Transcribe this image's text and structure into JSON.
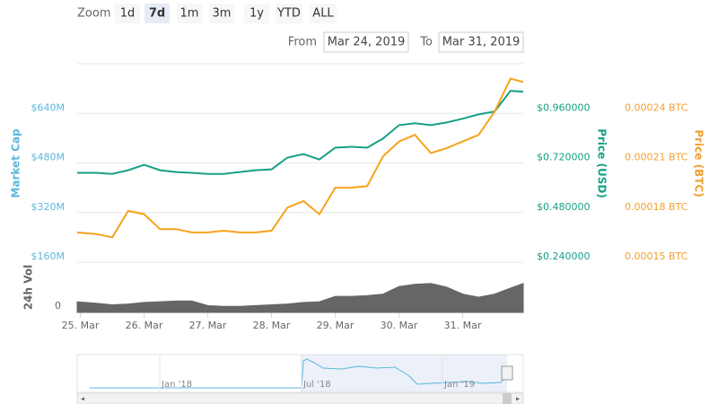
{
  "toolbar": {
    "zoom_label": "Zoom",
    "buttons": [
      "1d",
      "7d",
      "1m",
      "3m",
      "1y",
      "YTD",
      "ALL"
    ],
    "selected_index": 1,
    "from_label": "From",
    "from": "Mar 24, 2019",
    "to_label": "To",
    "to": "Mar 31, 2019"
  },
  "chart_data": {
    "type": "line",
    "x": [
      24.95,
      25.25,
      25.5,
      25.75,
      26,
      26.25,
      26.5,
      26.75,
      27,
      27.25,
      27.5,
      27.75,
      28,
      28.25,
      28.5,
      28.75,
      29,
      29.25,
      29.5,
      29.75,
      30,
      30.25,
      30.5,
      30.75,
      31,
      31.25,
      31.5,
      31.75,
      31.95
    ],
    "xlim": [
      24.95,
      31.95
    ],
    "xticks": [
      {
        "value": 25,
        "label": "25. Mar"
      },
      {
        "value": 26,
        "label": "26. Mar"
      },
      {
        "value": 27,
        "label": "27. Mar"
      },
      {
        "value": 28,
        "label": "28. Mar"
      },
      {
        "value": 29,
        "label": "29. Mar"
      },
      {
        "value": 30,
        "label": "30. Mar"
      },
      {
        "value": 31,
        "label": "31. Mar"
      }
    ],
    "ylabel": "Market Cap",
    "ycolor": "#5bb7e0",
    "ylim": [
      160000000,
      800000000
    ],
    "yticks": [
      {
        "value": 160000000,
        "label": "$160M"
      },
      {
        "value": 320000000,
        "label": "$320M"
      },
      {
        "value": 480000000,
        "label": "$480M"
      },
      {
        "value": 640000000,
        "label": "$640M"
      }
    ],
    "y2label": "Price (USD)",
    "y2color": "#16a085",
    "y2lim": [
      0.24,
      1.2
    ],
    "y2ticks": [
      {
        "value": 0.24,
        "label": "$0.240000"
      },
      {
        "value": 0.48,
        "label": "$0.480000"
      },
      {
        "value": 0.72,
        "label": "$0.720000"
      },
      {
        "value": 0.96,
        "label": "$0.960000"
      }
    ],
    "y3label": "Price (BTC)",
    "y3color": "#f0a030",
    "y3lim": [
      0.00015,
      0.00027
    ],
    "y3ticks": [
      {
        "value": 0.00015,
        "label": "0.00015 BTC"
      },
      {
        "value": 0.00018,
        "label": "0.00018 BTC"
      },
      {
        "value": 0.00021,
        "label": "0.00021 BTC"
      },
      {
        "value": 0.00024,
        "label": "0.00024 BTC"
      }
    ],
    "grid": true,
    "series": [
      {
        "axis": "y2",
        "color": "#16a085",
        "values": [
          0.672,
          0.672,
          0.667,
          0.685,
          0.711,
          0.685,
          0.676,
          0.672,
          0.667,
          0.667,
          0.676,
          0.685,
          0.689,
          0.746,
          0.763,
          0.737,
          0.794,
          0.798,
          0.794,
          0.838,
          0.903,
          0.912,
          0.903,
          0.916,
          0.934,
          0.955,
          0.969,
          1.069,
          1.065
        ]
      },
      {
        "axis": "y3",
        "color": "#f5a31a",
        "values": [
          0.000168,
          0.000167,
          0.000165,
          0.000181,
          0.000179,
          0.00017,
          0.00017,
          0.000168,
          0.000168,
          0.000169,
          0.000168,
          0.000168,
          0.000169,
          0.000183,
          0.000187,
          0.000179,
          0.000195,
          0.000195,
          0.000196,
          0.000214,
          0.000223,
          0.000227,
          0.000216,
          0.000219,
          0.000223,
          0.000227,
          0.000241,
          0.000261,
          0.000259
        ]
      }
    ],
    "volume": {
      "label": "24h Vol",
      "color": "#666666",
      "ylim": [
        0,
        60
      ],
      "yticks": [
        0
      ],
      "values": [
        14,
        12,
        10,
        11,
        13,
        14,
        15,
        15,
        9,
        8,
        8,
        9,
        10,
        11,
        13,
        14,
        21,
        21,
        22,
        24,
        34,
        37,
        38,
        33,
        24,
        20,
        24,
        32,
        38
      ]
    },
    "navigator": {
      "labels": [
        "Jan '18",
        "Jul '18",
        "Jan '19"
      ]
    }
  }
}
